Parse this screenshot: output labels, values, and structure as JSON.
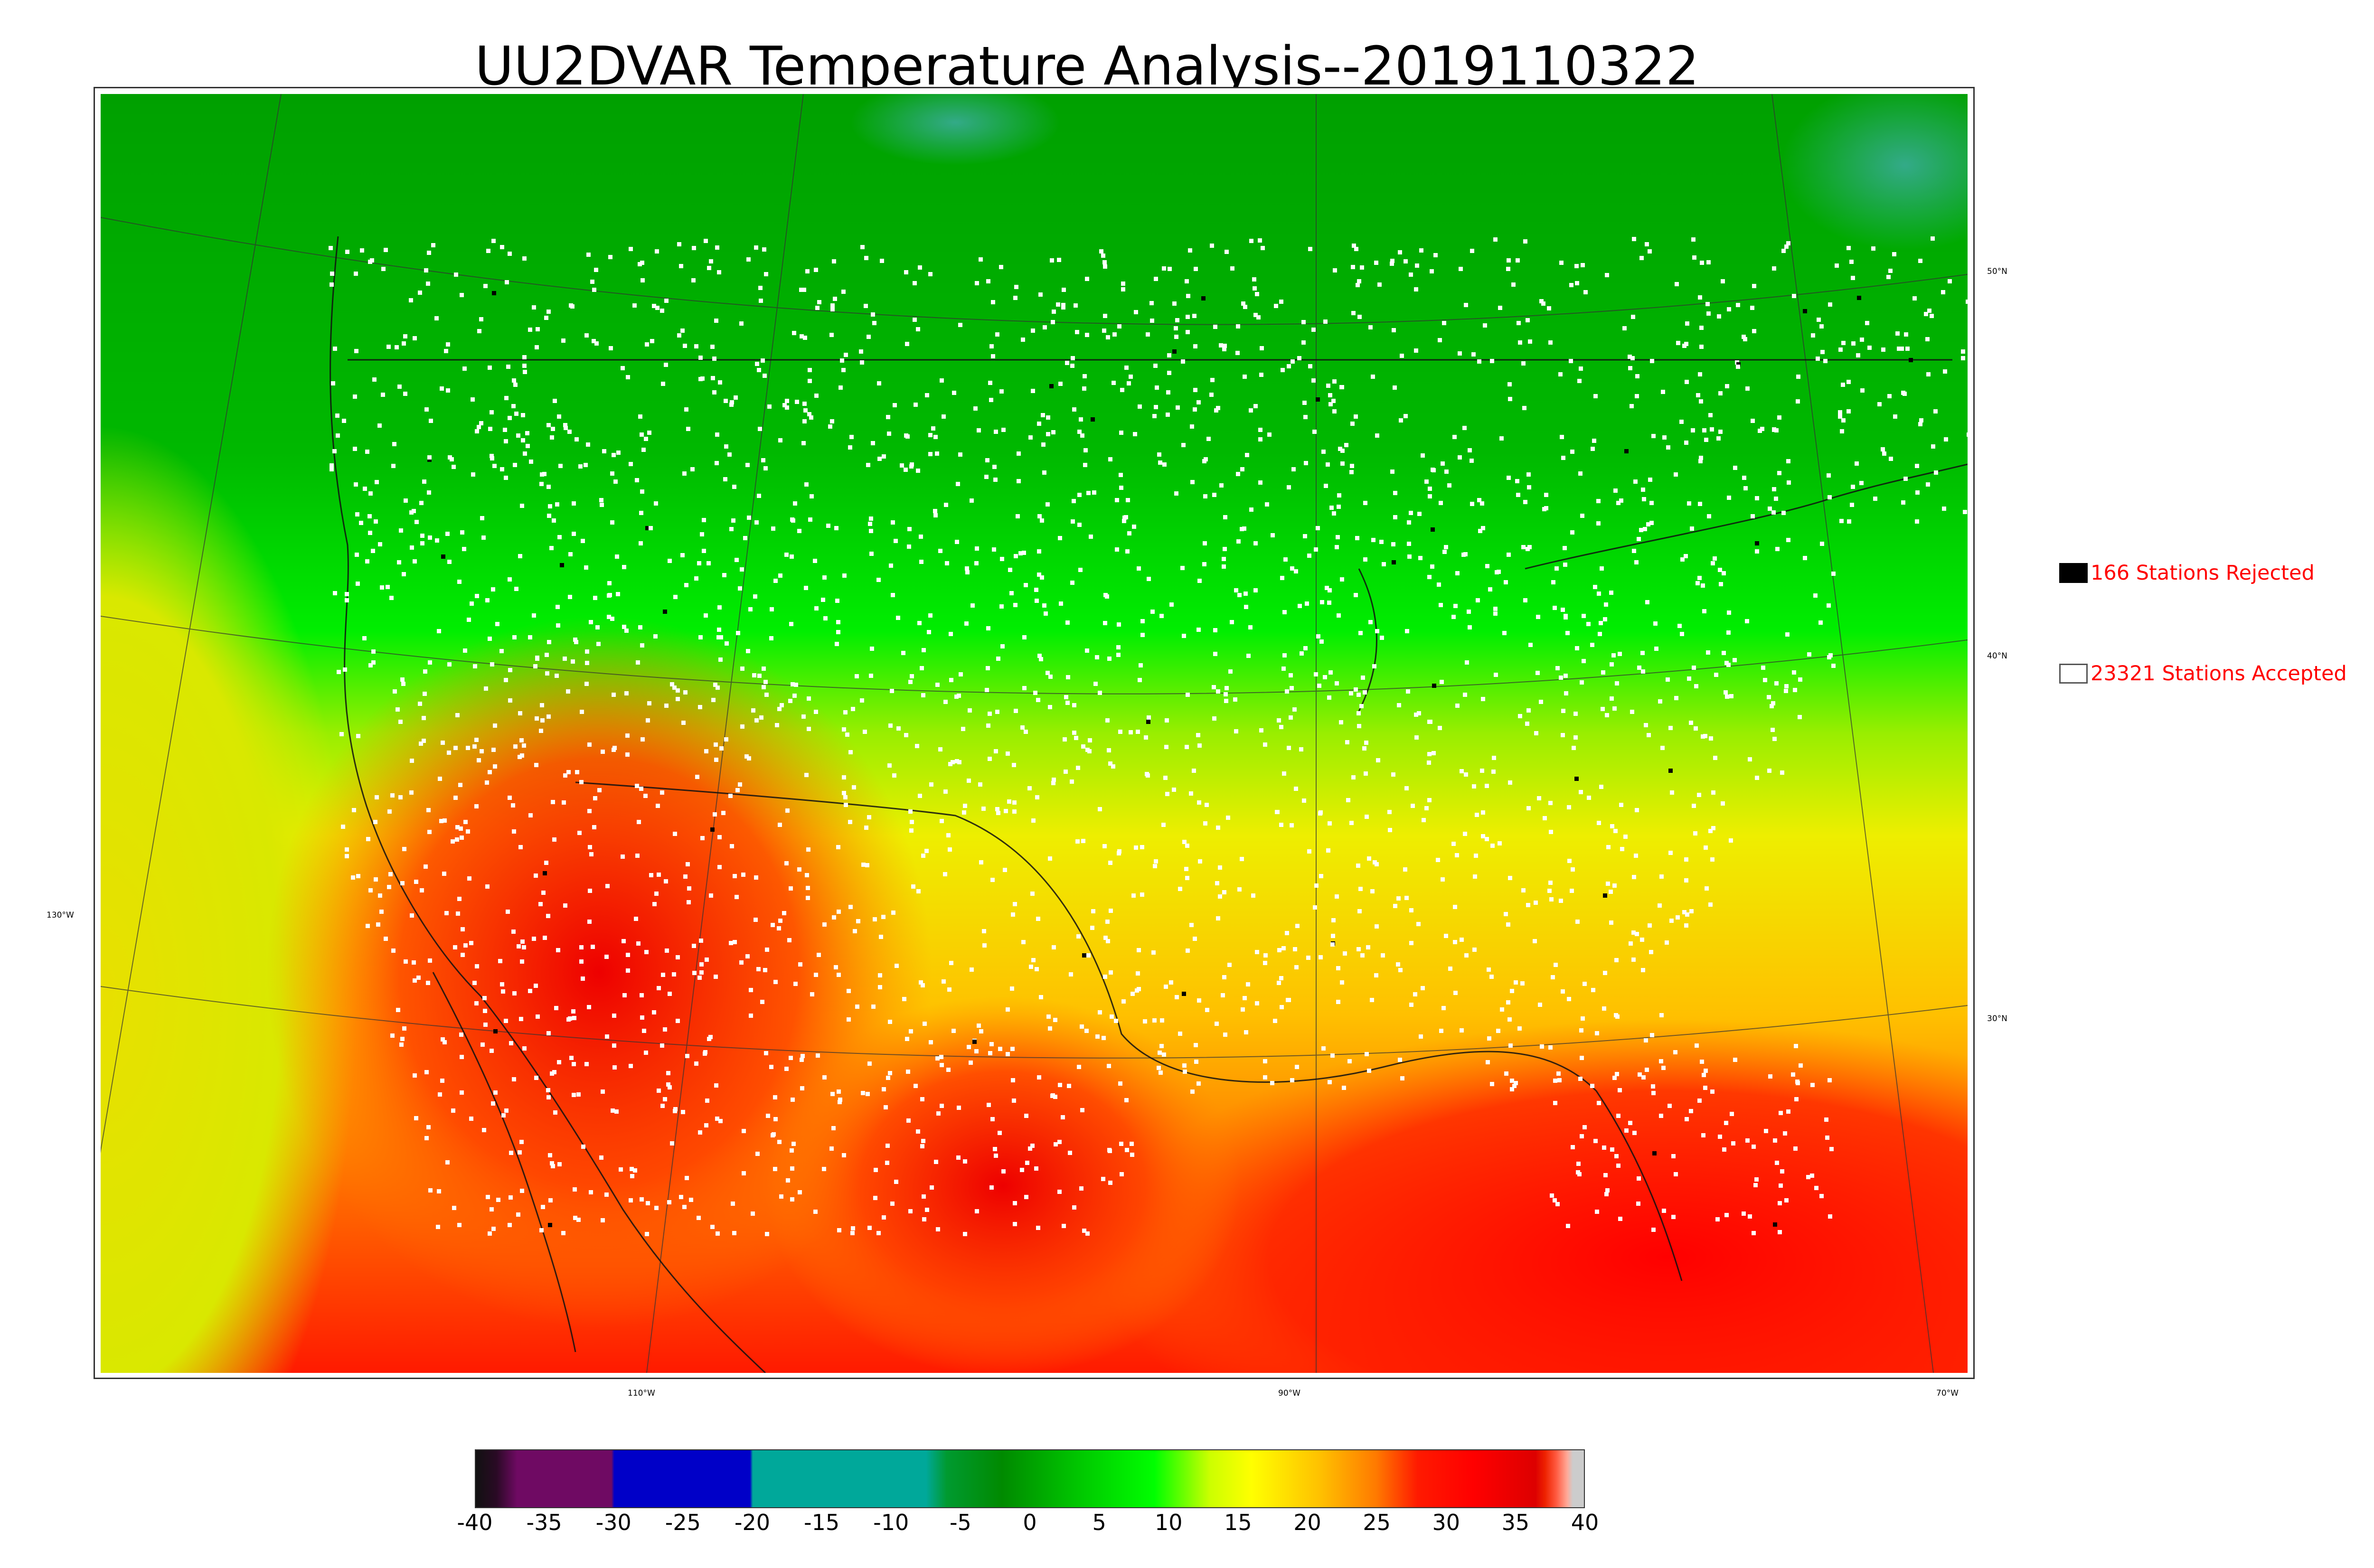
{
  "title": "UU2DVAR Temperature Analysis--2019110322",
  "map": {
    "lat_ticks": [
      {
        "label": "50°N"
      },
      {
        "label": "40°N"
      },
      {
        "label": "30°N"
      },
      {
        "label": "130°W"
      }
    ],
    "lon_ticks": [
      {
        "label": "110°W"
      },
      {
        "label": "90°W"
      },
      {
        "label": "70°W"
      }
    ]
  },
  "legend": {
    "rejected_label": "166 Stations Rejected",
    "accepted_label": "23321 Stations Accepted"
  },
  "colorbar": {
    "min": -40,
    "max": 40,
    "tick_labels": [
      "-40",
      "-35",
      "-30",
      "-25",
      "-20",
      "-15",
      "-10",
      "-5",
      "0",
      "5",
      "10",
      "15",
      "20",
      "25",
      "30",
      "35",
      "40"
    ],
    "stops": [
      {
        "v": -40,
        "color": "#111111"
      },
      {
        "v": -38.5,
        "color": "#2a0a25"
      },
      {
        "v": -37,
        "color": "#6f0a63"
      },
      {
        "v": -30.2,
        "color": "#6f0a63"
      },
      {
        "v": -30,
        "color": "#0000c8"
      },
      {
        "v": -20.2,
        "color": "#0000c8"
      },
      {
        "v": -20,
        "color": "#00a89a"
      },
      {
        "v": -7.5,
        "color": "#00a89a"
      },
      {
        "v": -6,
        "color": "#009a30"
      },
      {
        "v": -2,
        "color": "#008a00"
      },
      {
        "v": 4,
        "color": "#00cc00"
      },
      {
        "v": 9,
        "color": "#00ff00"
      },
      {
        "v": 13,
        "color": "#ccff00"
      },
      {
        "v": 16,
        "color": "#ffff00"
      },
      {
        "v": 21,
        "color": "#ffc000"
      },
      {
        "v": 25,
        "color": "#ff7a00"
      },
      {
        "v": 28,
        "color": "#ff1a00"
      },
      {
        "v": 32,
        "color": "#ff0000"
      },
      {
        "v": 36.5,
        "color": "#dd0000"
      },
      {
        "v": 37.2,
        "color": "#ee2200"
      },
      {
        "v": 38,
        "color": "#ff5a40"
      },
      {
        "v": 38.8,
        "color": "#ffaa99"
      },
      {
        "v": 39.2,
        "color": "#cccccc"
      },
      {
        "v": 40,
        "color": "#cccccc"
      }
    ]
  },
  "colors": {
    "legend_text": "#ff0000",
    "station_accepted": "#ffffff",
    "station_rejected": "#000000"
  }
}
